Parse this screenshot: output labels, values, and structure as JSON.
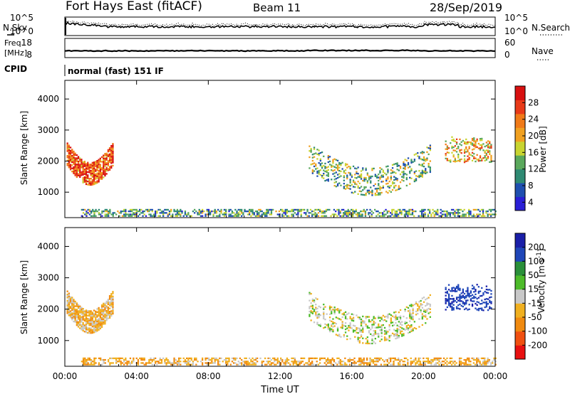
{
  "header": {
    "title": "Fort Hays East (fitACF)",
    "beam": "Beam 11",
    "date": "28/Sep/2019"
  },
  "noise_panel": {
    "label_left": "N.Sky",
    "label_right": "N.Search",
    "ytick_labels": [
      "10^5",
      "10^0"
    ]
  },
  "freq_panel": {
    "label_left_line1": "Freq.",
    "label_left_line2": "[MHz]",
    "label_right": "Nave",
    "left_ticks": [
      "18",
      "8"
    ],
    "right_ticks": [
      "60",
      "0"
    ]
  },
  "cpid": {
    "label": "CPID",
    "text": "normal (fast) 151 IF"
  },
  "colors": {
    "scale_power": [
      "#2a1fd6",
      "#1f4fb0",
      "#2f8a73",
      "#5aa85c",
      "#c8d430",
      "#f0a020",
      "#f07a18",
      "#e83a18",
      "#d81010"
    ],
    "scale_velocity": [
      "#e81010",
      "#f05010",
      "#f08a10",
      "#f0b020",
      "#c8c8c8",
      "#4dbb2a",
      "#2a8f3a",
      "#1f46b8",
      "#1a1fa8"
    ]
  },
  "chart_data": [
    {
      "type": "heatmap",
      "name": "power",
      "xlabel": "",
      "ylabel": "Slant Range [km]",
      "x_tick_labels": [
        "00:00",
        "04:00",
        "08:00",
        "12:00",
        "16:00",
        "20:00",
        "00:00"
      ],
      "y_tick_labels": [
        "1000",
        "2000",
        "3000",
        "4000"
      ],
      "yticks": [
        1000,
        2000,
        3000,
        4000
      ],
      "xlim": [
        0,
        24
      ],
      "ylim": [
        180,
        4600
      ],
      "colorbar_label": "Power [dB]",
      "colorbar_ticks": [
        "4",
        "8",
        "12",
        "16",
        "20",
        "24",
        "28"
      ],
      "colorbar_values": [
        4,
        8,
        12,
        16,
        20,
        24,
        28
      ],
      "colorbar_range": [
        2,
        32
      ],
      "regions": [
        {
          "hours": [
            0.1,
            2.7
          ],
          "range_km": [
            1300,
            2450
          ],
          "power_db": 26,
          "feature": "arc"
        },
        {
          "hours": [
            0.9,
            24.0
          ],
          "range_km": [
            200,
            550
          ],
          "power_db": 12,
          "feature": "band"
        },
        {
          "hours": [
            13.6,
            20.4
          ],
          "range_km": [
            1000,
            2400
          ],
          "power_db": 14,
          "feature": "bowl"
        },
        {
          "hours": [
            21.2,
            23.8
          ],
          "range_km": [
            1800,
            2900
          ],
          "power_db": 20,
          "feature": "cluster"
        }
      ]
    },
    {
      "type": "heatmap",
      "name": "velocity",
      "xlabel": "Time UT",
      "ylabel": "Slant Range [km]",
      "x_tick_labels": [
        "00:00",
        "04:00",
        "08:00",
        "12:00",
        "16:00",
        "20:00",
        "00:00"
      ],
      "y_tick_labels": [
        "1000",
        "2000",
        "3000",
        "4000"
      ],
      "yticks": [
        1000,
        2000,
        3000,
        4000
      ],
      "xlim": [
        0,
        24
      ],
      "ylim": [
        180,
        4600
      ],
      "colorbar_label": "Velocity [m s^-1]",
      "colorbar_ticks": [
        "-200",
        "-100",
        "-50",
        "-15",
        "15",
        "50",
        "100",
        "200"
      ],
      "colorbar_range": [
        -250,
        250
      ],
      "regions": [
        {
          "hours": [
            0.1,
            2.7
          ],
          "range_km": [
            1300,
            2450
          ],
          "velocity_ms": -30,
          "feature": "arc"
        },
        {
          "hours": [
            0.9,
            24.0
          ],
          "range_km": [
            200,
            550
          ],
          "velocity_ms": -40,
          "feature": "band"
        },
        {
          "hours": [
            13.6,
            20.4
          ],
          "range_km": [
            1000,
            2400
          ],
          "velocity_ms": 0,
          "feature": "bowl"
        },
        {
          "hours": [
            21.2,
            23.8
          ],
          "range_km": [
            1800,
            2900
          ],
          "velocity_ms": 180,
          "feature": "cluster"
        }
      ]
    }
  ]
}
